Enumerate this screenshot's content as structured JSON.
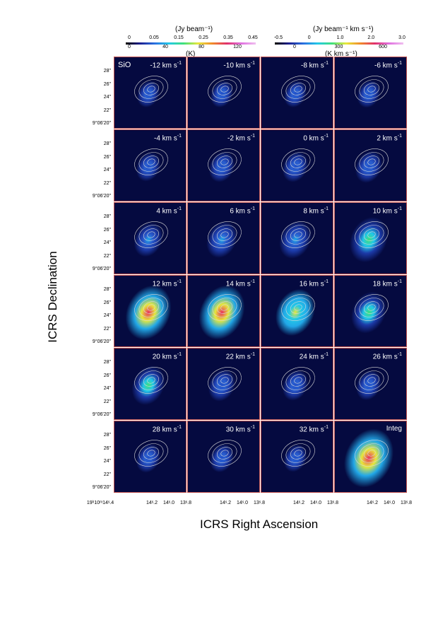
{
  "colorbar_left": {
    "unit_top": "(Jy beam⁻¹)",
    "ticks_top": [
      "0",
      "0.05",
      "0.15",
      "0.25",
      "0.35",
      "0.45"
    ],
    "ticks_bottom": [
      "0",
      "40",
      "80",
      "120"
    ],
    "unit_bottom": "(K)"
  },
  "colorbar_right": {
    "unit_top": "(Jy beam⁻¹ km s⁻¹)",
    "ticks_top": [
      "-0.5",
      "0",
      "1.0",
      "2.0",
      "3.0"
    ],
    "ticks_bottom": [
      "0",
      "300",
      "600"
    ],
    "unit_bottom": "(K  km s⁻¹)"
  },
  "molecule": "SiO",
  "panels": [
    {
      "label": "-12 km s",
      "peak": 0.05
    },
    {
      "label": "-10 km s",
      "peak": 0.05
    },
    {
      "label": "-8 km s",
      "peak": 0.05
    },
    {
      "label": "-6 km s",
      "peak": 0.06
    },
    {
      "label": "-4 km s",
      "peak": 0.08
    },
    {
      "label": "-2 km s",
      "peak": 0.1
    },
    {
      "label": "0 km s",
      "peak": 0.1
    },
    {
      "label": "2 km s",
      "peak": 0.12
    },
    {
      "label": "4 km s",
      "peak": 0.15
    },
    {
      "label": "6 km s",
      "peak": 0.18
    },
    {
      "label": "8 km s",
      "peak": 0.2
    },
    {
      "label": "10 km s",
      "peak": 0.3
    },
    {
      "label": "12 km s",
      "peak": 0.42
    },
    {
      "label": "14 km s",
      "peak": 0.42
    },
    {
      "label": "16 km s",
      "peak": 0.32
    },
    {
      "label": "18 km s",
      "peak": 0.25
    },
    {
      "label": "20 km s",
      "peak": 0.22
    },
    {
      "label": "22 km s",
      "peak": 0.12
    },
    {
      "label": "24 km s",
      "peak": 0.1
    },
    {
      "label": "26 km s",
      "peak": 0.09
    },
    {
      "label": "28 km s",
      "peak": 0.08
    },
    {
      "label": "30 km s",
      "peak": 0.07
    },
    {
      "label": "32 km s",
      "peak": 0.06
    },
    {
      "label": "Integ",
      "peak": 0.48
    }
  ],
  "velocity_unit": "-1",
  "y_ticks": [
    "28\"",
    "26\"",
    "24\"",
    "22\"",
    "9°06'20\""
  ],
  "x_ticks_first": "19ʰ10ᵐ14ˢ.4",
  "x_ticks": [
    "14ˢ.2",
    "14ˢ.0",
    "13ˢ.8"
  ],
  "x_label": "ICRS Right Ascension",
  "y_label": "ICRS Declination"
}
